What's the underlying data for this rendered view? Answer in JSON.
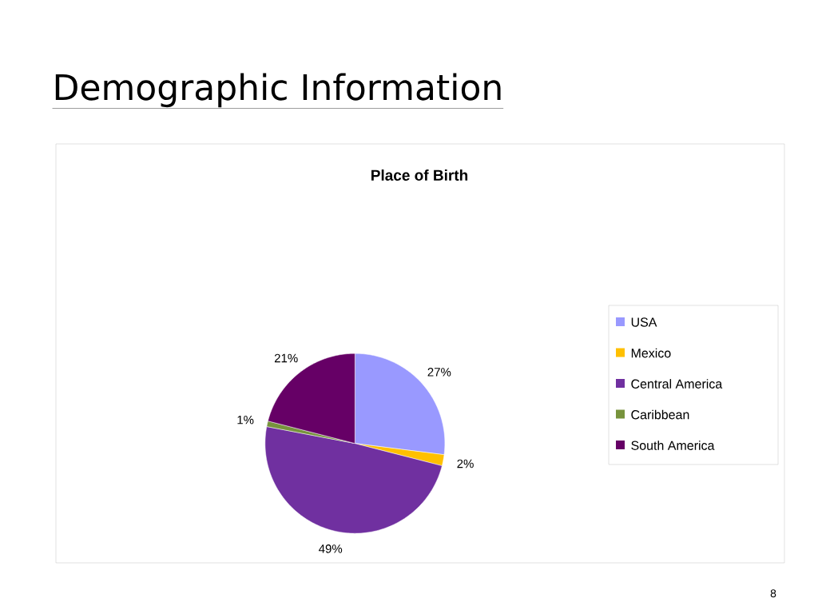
{
  "chart_data": {
    "type": "pie",
    "title": "Place of Birth",
    "categories": [
      "USA",
      "Mexico",
      "Central America",
      "Caribbean",
      "South America"
    ],
    "values": [
      27,
      2,
      49,
      1,
      21
    ],
    "colors": [
      "#9999ff",
      "#ffc000",
      "#7030a0",
      "#77933c",
      "#660066"
    ],
    "value_labels": [
      "27%",
      "2%",
      "49%",
      "1%",
      "21%"
    ],
    "legend": "right",
    "annotations": [
      "Demographic Information",
      "8"
    ]
  }
}
